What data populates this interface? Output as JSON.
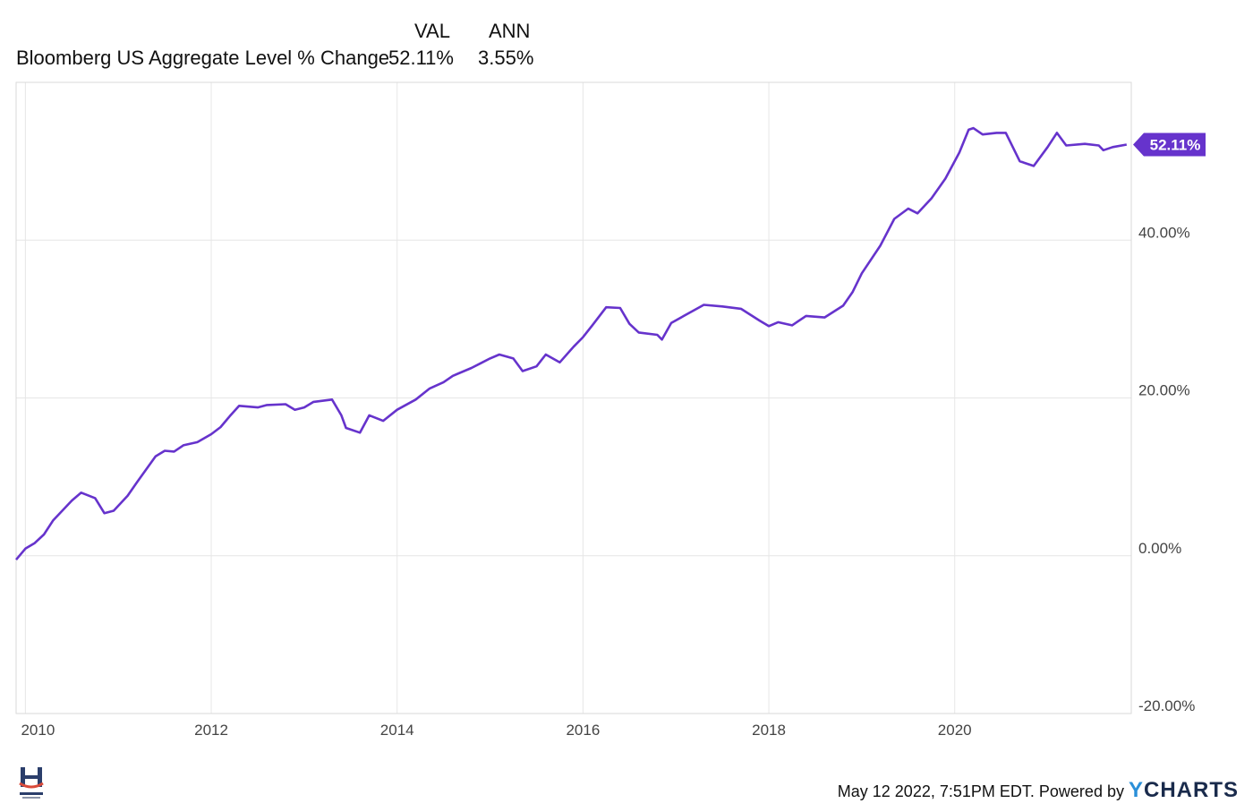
{
  "legend": {
    "col_val": "VAL",
    "col_ann": "ANN",
    "series_name": "Bloomberg US Aggregate Level % Change",
    "val": "52.11%",
    "ann": "3.55%"
  },
  "footer": {
    "timestamp": "May 12 2022, 7:51PM EDT.",
    "powered": "Powered by",
    "brand_y": "Y",
    "brand_rest": "CHARTS"
  },
  "chart_data": {
    "type": "line",
    "xlim": [
      2009.9,
      2021.9
    ],
    "ylim": [
      -20,
      60
    ],
    "x_ticks": [
      2010,
      2012,
      2014,
      2016,
      2018,
      2020
    ],
    "x_tick_labels": [
      "2010",
      "2012",
      "2014",
      "2016",
      "2018",
      "2020"
    ],
    "y_ticks": [
      -20,
      0,
      20,
      40
    ],
    "y_tick_labels": [
      "-20.00%",
      "0.00%",
      "20.00%",
      "40.00%"
    ],
    "grid": true,
    "line_color": "#6633cc",
    "end_label": "52.11%",
    "series": [
      {
        "name": "Bloomberg US Aggregate Level % Change",
        "x": [
          2009.9,
          2010.0,
          2010.1,
          2010.2,
          2010.3,
          2010.5,
          2010.6,
          2010.75,
          2010.85,
          2010.95,
          2011.1,
          2011.2,
          2011.4,
          2011.5,
          2011.6,
          2011.7,
          2011.85,
          2012.0,
          2012.1,
          2012.2,
          2012.3,
          2012.5,
          2012.6,
          2012.8,
          2012.9,
          2013.0,
          2013.1,
          2013.3,
          2013.4,
          2013.45,
          2013.6,
          2013.7,
          2013.85,
          2014.0,
          2014.2,
          2014.35,
          2014.5,
          2014.6,
          2014.8,
          2014.9,
          2015.0,
          2015.1,
          2015.25,
          2015.35,
          2015.5,
          2015.6,
          2015.75,
          2015.9,
          2016.0,
          2016.1,
          2016.25,
          2016.4,
          2016.5,
          2016.6,
          2016.8,
          2016.85,
          2016.95,
          2017.1,
          2017.3,
          2017.5,
          2017.7,
          2017.9,
          2018.0,
          2018.1,
          2018.25,
          2018.4,
          2018.6,
          2018.8,
          2018.9,
          2019.0,
          2019.2,
          2019.35,
          2019.5,
          2019.6,
          2019.75,
          2019.9,
          2020.05,
          2020.15,
          2020.2,
          2020.3,
          2020.45,
          2020.55,
          2020.7,
          2020.85,
          2021.0,
          2021.1,
          2021.2,
          2021.4,
          2021.55,
          2021.6,
          2021.7,
          2021.85
        ],
        "y": [
          -0.5,
          0.9,
          1.6,
          2.7,
          4.5,
          7.0,
          8.0,
          7.3,
          5.4,
          5.7,
          7.6,
          9.3,
          12.6,
          13.3,
          13.2,
          14.0,
          14.4,
          15.4,
          16.3,
          17.7,
          19.0,
          18.8,
          19.1,
          19.2,
          18.5,
          18.8,
          19.5,
          19.8,
          17.8,
          16.2,
          15.6,
          17.8,
          17.1,
          18.5,
          19.8,
          21.2,
          22.0,
          22.8,
          23.8,
          24.4,
          25.0,
          25.5,
          25.0,
          23.4,
          24.0,
          25.5,
          24.5,
          26.5,
          27.7,
          29.2,
          31.5,
          31.4,
          29.4,
          28.3,
          28.0,
          27.4,
          29.5,
          30.5,
          31.8,
          31.6,
          31.3,
          29.8,
          29.1,
          29.6,
          29.2,
          30.4,
          30.2,
          31.7,
          33.4,
          35.8,
          39.3,
          42.7,
          44.0,
          43.4,
          45.3,
          47.8,
          51.1,
          54.0,
          54.2,
          53.4,
          53.6,
          53.6,
          50.0,
          49.4,
          51.8,
          53.6,
          52.0,
          52.2,
          52.0,
          51.4,
          51.8,
          52.11
        ]
      }
    ]
  }
}
